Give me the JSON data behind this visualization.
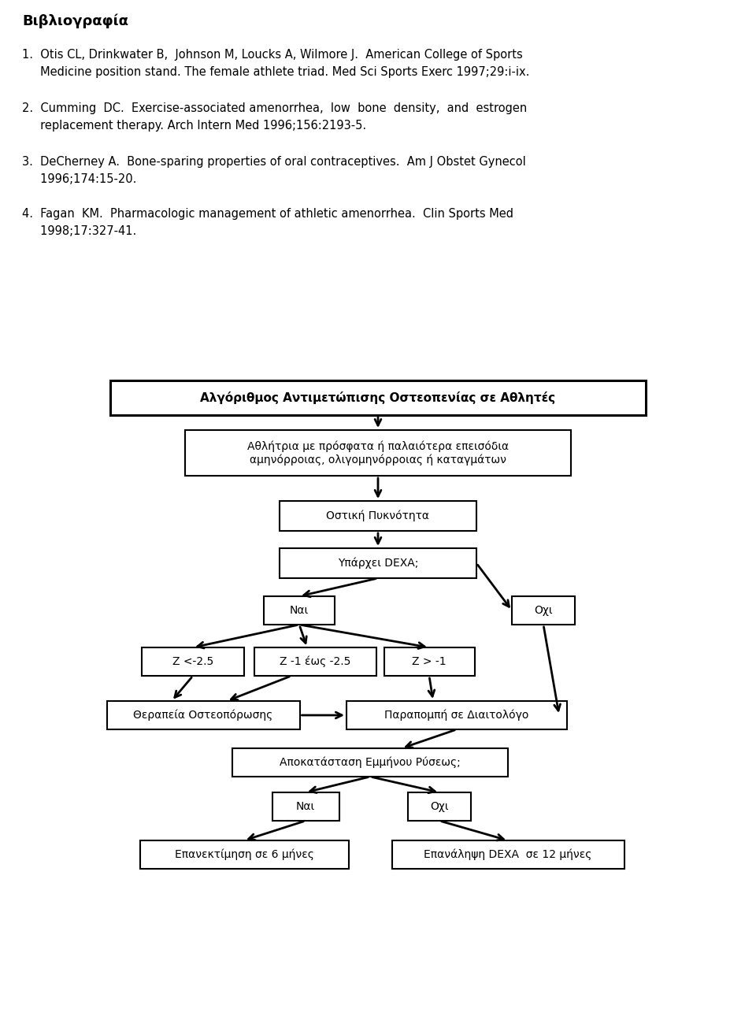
{
  "background_color": "#ffffff",
  "page_width": 9.6,
  "page_height": 12.81,
  "bib_title": "Βιβλιογραφία",
  "ref1_line1": "1.  Otis CL, Drinkwater B,  Johnson M, Loucks A, Wilmore J.  American College of Sports",
  "ref1_line2": "     Medicine position stand. The female athlete triad. Med Sci Sports Exerc 1997;29:i-ix.",
  "ref2_line1": "2.  Cumming  DC.  Exercise-associated amenorrhea,  low  bone  density,  and  estrogen",
  "ref2_line2": "     replacement therapy. Arch Intern Med 1996;156:2193-5.",
  "ref3_line1": "3.  DeCherney A.  Bone-sparing properties of oral contraceptives.  Am J Obstet Gynecol",
  "ref3_line2": "     1996;174:15-20.",
  "ref4_line1": "4.  Fagan  KM.  Pharmacologic management of athletic amenorrhea.  Clin Sports Med",
  "ref4_line2": "     1998;17:327-41.",
  "diag_title": "Αλγόριθμος Αντιμετώπισης Οστεοπενίας σε Αθλητές",
  "box1": "Αθλήτρια με πρόσφατα ή παλαιότερα επεισόδια\nαμηνόρροιας, ολιγομηνόρροιας ή καταγμάτων",
  "box2": "Οστική Πυκνότητα",
  "box3": "Υπάρχει DEXA;",
  "nai1": "Ναι",
  "oxi1": "Οχι",
  "z1": "Z <-2.5",
  "z2": "Z -1 έως -2.5",
  "z3": "Z > -1",
  "thera": "Θεραπεία Οστεοπόρωσης",
  "para": "Παραπομπή σε Διαιτολόγο",
  "apok": "Αποκατάσταση Εμμήνου Ρύσεως;",
  "nai2": "Ναι",
  "oxi2": "Οχι",
  "epan1": "Επανεκτίμηση σε 6 μήνες",
  "epan2": "Επανάληψη DEXA  σε 12 μήνες"
}
